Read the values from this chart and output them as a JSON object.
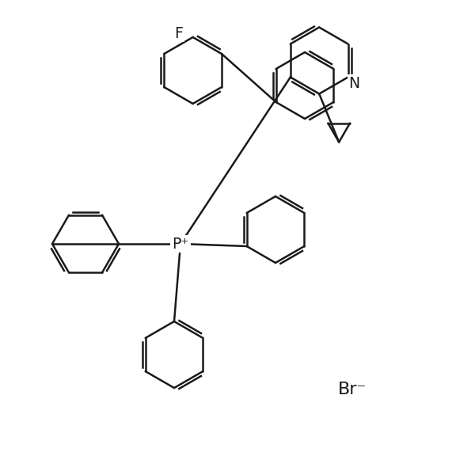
{
  "background_color": "#ffffff",
  "line_color": "#1a1a1a",
  "line_width": 1.8,
  "font_size": 14,
  "br_label": "Br⁻",
  "n_label": "N",
  "f_label": "F",
  "p_label": "P⁺"
}
